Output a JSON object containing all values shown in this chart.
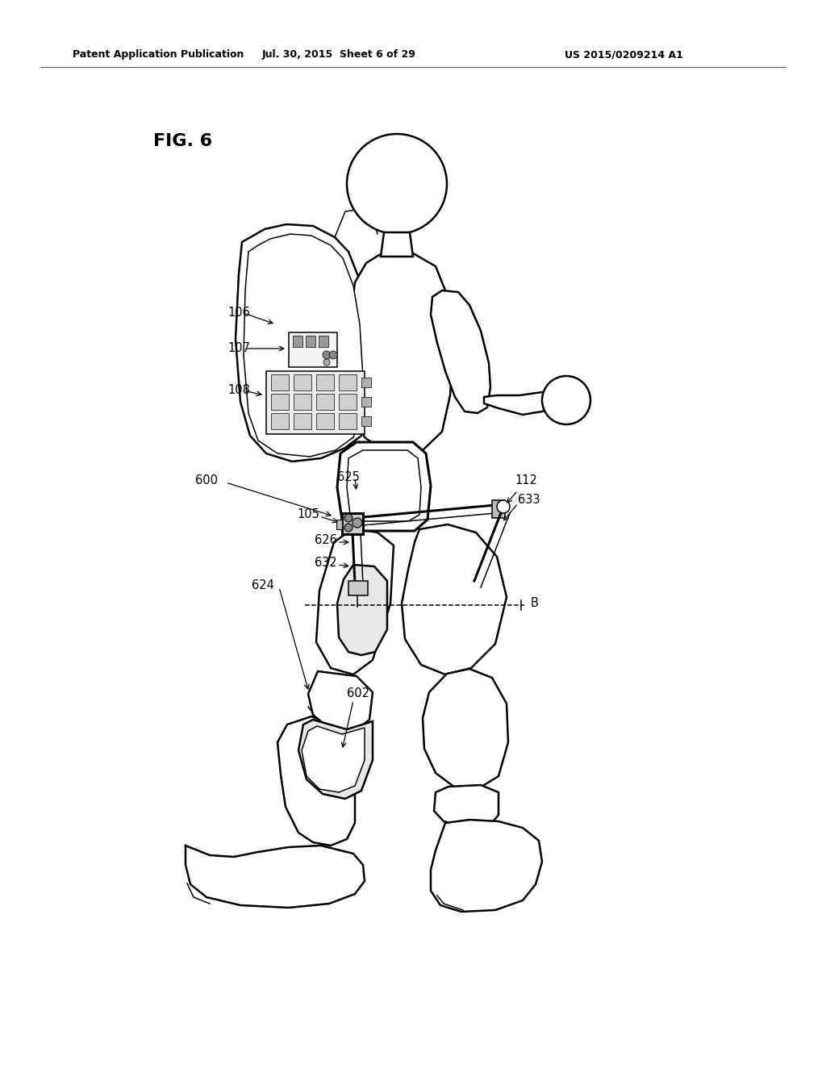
{
  "bg_color": "#ffffff",
  "line_color": "#000000",
  "fig_label": "FIG. 6",
  "header_left": "Patent Application Publication",
  "header_mid": "Jul. 30, 2015  Sheet 6 of 29",
  "header_right": "US 2015/0209214 A1",
  "lw_main": 1.8,
  "lw_thick": 2.2,
  "lw_thin": 1.1,
  "label_fontsize": 10.5,
  "header_fontsize": 9,
  "fig_label_fontsize": 16,
  "fig_width": 1024,
  "fig_height": 1320
}
